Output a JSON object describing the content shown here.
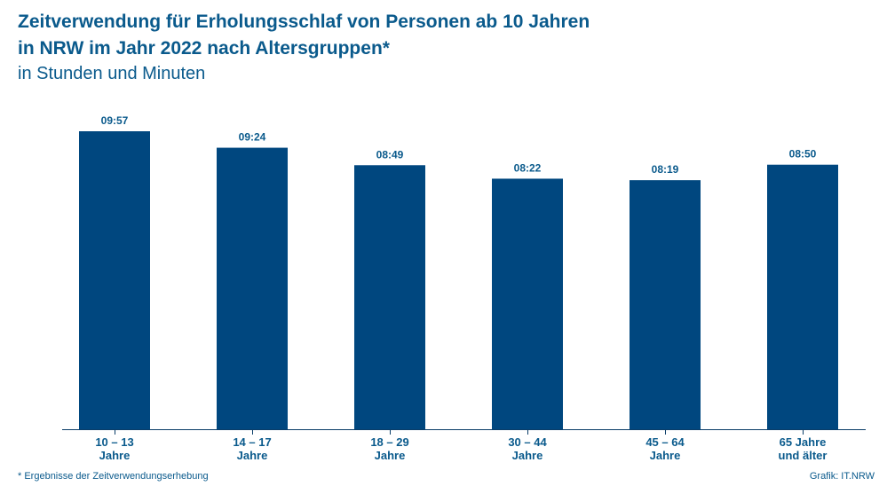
{
  "colors": {
    "bar": "#00477f",
    "text": "#0a5a8c",
    "axis": "#0a3d68"
  },
  "title_line1": "Zeitverwendung für Erholungsschlaf von Personen ab 10 Jahren",
  "title_line2": "in NRW im Jahr 2022 nach Altersgruppen*",
  "subtitle": "in Stunden und Minuten",
  "footnote": "*  Ergebnisse der Zeitverwendungserhebung",
  "source": "Grafik: IT.NRW",
  "chart_data": {
    "type": "bar",
    "title": "Zeitverwendung für Erholungsschlaf von Personen ab 10 Jahren in NRW im Jahr 2022 nach Altersgruppen*",
    "subtitle": "in Stunden und Minuten",
    "categories": [
      [
        "10 – 13",
        "Jahre"
      ],
      [
        "14 – 17",
        "Jahre"
      ],
      [
        "18 – 29",
        "Jahre"
      ],
      [
        "30 – 44",
        "Jahre"
      ],
      [
        "45 – 64",
        "Jahre"
      ],
      [
        "65 Jahre",
        "und älter"
      ]
    ],
    "values_minutes": [
      597,
      564,
      529,
      502,
      499,
      530
    ],
    "value_labels": [
      "09:57",
      "09:24",
      "08:49",
      "08:22",
      "08:19",
      "08:50"
    ],
    "ylim_minutes": [
      0,
      597
    ],
    "grid": false,
    "legend": "none"
  }
}
